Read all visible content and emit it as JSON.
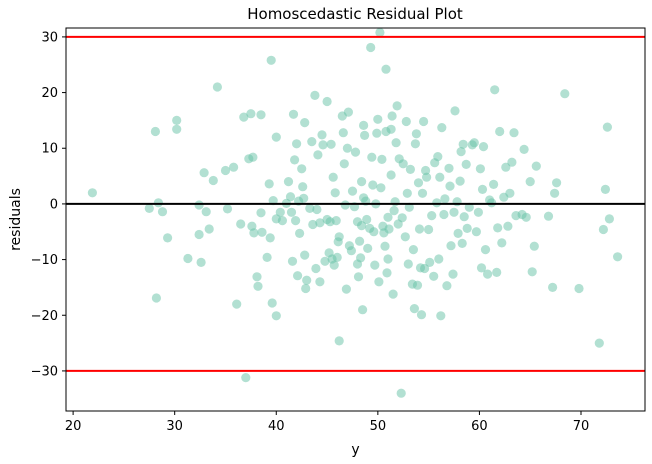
{
  "chart_data": {
    "type": "scatter",
    "title": "Homoscedastic Residual Plot",
    "xlabel": "y",
    "ylabel": "residuals",
    "xlim": [
      19.3,
      76.3
    ],
    "ylim": [
      -37.2,
      31.6
    ],
    "xticks": [
      20,
      30,
      40,
      50,
      60,
      70
    ],
    "yticks": [
      -30,
      -20,
      -10,
      0,
      10,
      20,
      30
    ],
    "grid": false,
    "point_color": "#66c2a5",
    "point_opacity": 0.5,
    "reference_lines": [
      {
        "y": 0,
        "color": "#000000"
      },
      {
        "y": 30,
        "color": "#ff0000"
      },
      {
        "y": -30,
        "color": "#ff0000"
      }
    ],
    "points": [
      [
        21.9,
        2.0
      ],
      [
        27.5,
        -0.8
      ],
      [
        28.1,
        13.0
      ],
      [
        28.2,
        -16.9
      ],
      [
        28.4,
        0.2
      ],
      [
        28.8,
        -1.4
      ],
      [
        29.3,
        -6.1
      ],
      [
        30.2,
        13.4
      ],
      [
        30.2,
        15.0
      ],
      [
        31.3,
        -9.8
      ],
      [
        32.4,
        -0.2
      ],
      [
        32.4,
        -5.5
      ],
      [
        32.6,
        -10.5
      ],
      [
        32.9,
        5.6
      ],
      [
        33.1,
        -1.4
      ],
      [
        33.4,
        -4.5
      ],
      [
        33.8,
        4.2
      ],
      [
        34.2,
        21.0
      ],
      [
        35.0,
        6.0
      ],
      [
        35.2,
        -0.9
      ],
      [
        35.8,
        6.6
      ],
      [
        36.1,
        -18.0
      ],
      [
        36.5,
        -3.6
      ],
      [
        36.8,
        15.6
      ],
      [
        37.0,
        -31.2
      ],
      [
        37.3,
        8.1
      ],
      [
        37.5,
        16.2
      ],
      [
        37.6,
        -4.0
      ],
      [
        37.7,
        8.4
      ],
      [
        37.8,
        -5.2
      ],
      [
        38.1,
        -13.1
      ],
      [
        38.2,
        -14.8
      ],
      [
        38.5,
        16.0
      ],
      [
        38.5,
        -1.6
      ],
      [
        38.6,
        -5.1
      ],
      [
        39.1,
        -9.6
      ],
      [
        39.3,
        3.6
      ],
      [
        39.4,
        -6.1
      ],
      [
        39.5,
        25.8
      ],
      [
        39.6,
        -17.8
      ],
      [
        39.7,
        0.6
      ],
      [
        40.0,
        -2.7
      ],
      [
        40.0,
        12.0
      ],
      [
        40.0,
        -20.1
      ],
      [
        40.4,
        -1.5
      ],
      [
        40.6,
        -3.0
      ],
      [
        41.0,
        0.1
      ],
      [
        41.2,
        4.0
      ],
      [
        41.4,
        1.3
      ],
      [
        41.5,
        -1.5
      ],
      [
        41.6,
        -10.3
      ],
      [
        41.7,
        16.1
      ],
      [
        41.8,
        7.9
      ],
      [
        41.9,
        -3.0
      ],
      [
        42.0,
        10.8
      ],
      [
        42.1,
        -12.9
      ],
      [
        42.2,
        0.5
      ],
      [
        42.3,
        -5.3
      ],
      [
        42.5,
        6.3
      ],
      [
        42.6,
        3.1
      ],
      [
        42.7,
        1.0
      ],
      [
        42.8,
        -9.2
      ],
      [
        42.8,
        14.6
      ],
      [
        42.9,
        -15.2
      ],
      [
        43.0,
        -13.7
      ],
      [
        43.3,
        -0.8
      ],
      [
        43.5,
        11.2
      ],
      [
        43.6,
        -3.7
      ],
      [
        43.8,
        19.5
      ],
      [
        43.9,
        -11.6
      ],
      [
        44.0,
        -1.0
      ],
      [
        44.1,
        8.8
      ],
      [
        44.3,
        -3.4
      ],
      [
        44.3,
        -14.0
      ],
      [
        44.5,
        12.4
      ],
      [
        44.6,
        10.6
      ],
      [
        44.8,
        -10.3
      ],
      [
        45.0,
        -2.8
      ],
      [
        45.0,
        18.4
      ],
      [
        45.2,
        -8.8
      ],
      [
        45.3,
        -3.2
      ],
      [
        45.4,
        10.7
      ],
      [
        45.5,
        -9.9
      ],
      [
        45.6,
        4.8
      ],
      [
        45.7,
        -11.0
      ],
      [
        45.8,
        2.0
      ],
      [
        45.9,
        -3.0
      ],
      [
        46.0,
        -9.6
      ],
      [
        46.1,
        -6.8
      ],
      [
        46.2,
        -24.6
      ],
      [
        46.2,
        -5.9
      ],
      [
        46.5,
        15.8
      ],
      [
        46.6,
        12.8
      ],
      [
        46.7,
        7.2
      ],
      [
        46.8,
        -0.2
      ],
      [
        46.9,
        -15.3
      ],
      [
        47.0,
        10.0
      ],
      [
        47.1,
        16.5
      ],
      [
        47.2,
        -7.5
      ],
      [
        47.4,
        -8.4
      ],
      [
        47.5,
        2.3
      ],
      [
        47.7,
        -0.5
      ],
      [
        47.8,
        9.3
      ],
      [
        48.0,
        -3.2
      ],
      [
        48.0,
        -10.8
      ],
      [
        48.1,
        -13.1
      ],
      [
        48.2,
        -6.7
      ],
      [
        48.3,
        -9.7
      ],
      [
        48.4,
        4.0
      ],
      [
        48.4,
        -3.9
      ],
      [
        48.5,
        -19.0
      ],
      [
        48.6,
        1.1
      ],
      [
        48.6,
        14.1
      ],
      [
        48.7,
        12.3
      ],
      [
        48.8,
        0.5
      ],
      [
        48.9,
        -2.8
      ],
      [
        49.0,
        -8.0
      ],
      [
        49.2,
        -4.4
      ],
      [
        49.3,
        28.1
      ],
      [
        49.4,
        8.4
      ],
      [
        49.5,
        3.4
      ],
      [
        49.6,
        -5.0
      ],
      [
        49.7,
        -11.0
      ],
      [
        49.8,
        0.0
      ],
      [
        49.9,
        12.7
      ],
      [
        50.0,
        15.2
      ],
      [
        50.1,
        -14.0
      ],
      [
        50.2,
        30.8
      ],
      [
        50.3,
        2.9
      ],
      [
        50.4,
        8.0
      ],
      [
        50.5,
        -4.0
      ],
      [
        50.6,
        -5.2
      ],
      [
        50.7,
        -7.6
      ],
      [
        50.8,
        24.2
      ],
      [
        50.8,
        13.0
      ],
      [
        50.9,
        -12.4
      ],
      [
        51.0,
        -2.4
      ],
      [
        51.0,
        -9.9
      ],
      [
        51.1,
        -4.5
      ],
      [
        51.3,
        13.4
      ],
      [
        51.3,
        5.2
      ],
      [
        51.4,
        15.8
      ],
      [
        51.5,
        -16.2
      ],
      [
        51.6,
        -1.2
      ],
      [
        51.7,
        0.4
      ],
      [
        51.8,
        11.0
      ],
      [
        51.9,
        17.6
      ],
      [
        52.0,
        -3.6
      ],
      [
        52.1,
        8.1
      ],
      [
        52.3,
        -34.0
      ],
      [
        52.4,
        -2.5
      ],
      [
        52.5,
        7.2
      ],
      [
        52.7,
        -5.9
      ],
      [
        52.8,
        14.8
      ],
      [
        52.9,
        1.9
      ],
      [
        53.0,
        -10.8
      ],
      [
        53.1,
        -0.6
      ],
      [
        53.2,
        6.2
      ],
      [
        53.4,
        -14.4
      ],
      [
        53.5,
        -8.2
      ],
      [
        53.6,
        -18.8
      ],
      [
        53.7,
        10.8
      ],
      [
        53.8,
        12.6
      ],
      [
        53.9,
        -14.6
      ],
      [
        54.0,
        3.8
      ],
      [
        54.1,
        -4.5
      ],
      [
        54.2,
        -11.5
      ],
      [
        54.3,
        -19.9
      ],
      [
        54.4,
        1.9
      ],
      [
        54.5,
        14.8
      ],
      [
        54.6,
        -11.6
      ],
      [
        54.7,
        6.0
      ],
      [
        54.8,
        4.8
      ],
      [
        55.0,
        -4.6
      ],
      [
        55.1,
        -10.5
      ],
      [
        55.3,
        -2.1
      ],
      [
        55.5,
        -13.0
      ],
      [
        55.6,
        7.4
      ],
      [
        55.8,
        0.2
      ],
      [
        55.9,
        8.5
      ],
      [
        56.0,
        -9.9
      ],
      [
        56.1,
        4.8
      ],
      [
        56.2,
        -20.1
      ],
      [
        56.3,
        13.7
      ],
      [
        56.5,
        -1.9
      ],
      [
        56.6,
        0.9
      ],
      [
        56.8,
        -14.7
      ],
      [
        57.0,
        6.4
      ],
      [
        57.1,
        3.2
      ],
      [
        57.2,
        -7.5
      ],
      [
        57.4,
        -12.6
      ],
      [
        57.5,
        -1.5
      ],
      [
        57.6,
        16.7
      ],
      [
        57.8,
        0.4
      ],
      [
        57.9,
        -5.3
      ],
      [
        58.1,
        4.1
      ],
      [
        58.2,
        9.4
      ],
      [
        58.3,
        -7.1
      ],
      [
        58.4,
        10.7
      ],
      [
        58.5,
        -2.3
      ],
      [
        58.7,
        7.1
      ],
      [
        58.8,
        -4.4
      ],
      [
        59.0,
        -0.6
      ],
      [
        59.3,
        10.6
      ],
      [
        59.5,
        11.0
      ],
      [
        59.7,
        -5.0
      ],
      [
        59.9,
        -1.5
      ],
      [
        60.1,
        6.3
      ],
      [
        60.2,
        -11.5
      ],
      [
        60.3,
        2.6
      ],
      [
        60.4,
        10.3
      ],
      [
        60.6,
        -8.2
      ],
      [
        60.8,
        -12.6
      ],
      [
        61.0,
        0.7
      ],
      [
        61.2,
        0.2
      ],
      [
        61.4,
        3.5
      ],
      [
        61.5,
        20.5
      ],
      [
        61.7,
        -12.3
      ],
      [
        61.8,
        -4.3
      ],
      [
        62.0,
        13.0
      ],
      [
        62.2,
        -7.0
      ],
      [
        62.4,
        1.2
      ],
      [
        62.6,
        6.6
      ],
      [
        62.8,
        -4.0
      ],
      [
        63.0,
        1.9
      ],
      [
        63.2,
        7.5
      ],
      [
        63.4,
        12.8
      ],
      [
        63.6,
        -2.1
      ],
      [
        64.2,
        -1.9
      ],
      [
        64.4,
        9.8
      ],
      [
        64.6,
        -2.4
      ],
      [
        65.0,
        4.0
      ],
      [
        65.2,
        -12.2
      ],
      [
        65.4,
        -7.6
      ],
      [
        65.6,
        6.8
      ],
      [
        66.8,
        -2.2
      ],
      [
        67.2,
        -15.0
      ],
      [
        67.4,
        1.9
      ],
      [
        67.6,
        3.8
      ],
      [
        68.4,
        19.8
      ],
      [
        69.8,
        -15.2
      ],
      [
        71.8,
        -25.0
      ],
      [
        72.2,
        -4.6
      ],
      [
        72.4,
        2.6
      ],
      [
        72.6,
        13.8
      ],
      [
        72.8,
        -2.7
      ],
      [
        73.6,
        -9.5
      ]
    ]
  }
}
